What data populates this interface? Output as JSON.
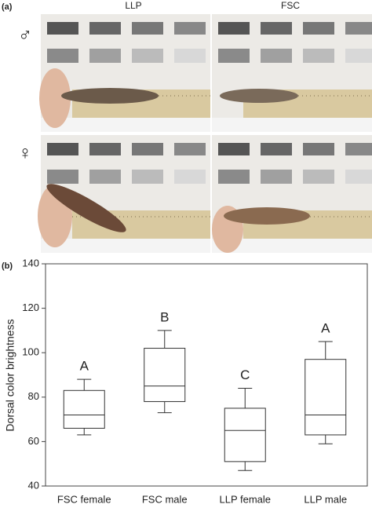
{
  "figure": {
    "panel_a_label": "(a)",
    "columns": [
      "LLP",
      "FSC"
    ],
    "rows": [
      "♂",
      "♀"
    ]
  },
  "chart_data": {
    "type": "box",
    "panel_label": "(b)",
    "y_label": "Dorsal color brightness",
    "categories": [
      "FSC female",
      "FSC male",
      "LLP female",
      "LLP male"
    ],
    "boxes": [
      {
        "min": 63,
        "q1": 66,
        "median": 72,
        "q3": 83,
        "max": 88
      },
      {
        "min": 73,
        "q1": 78,
        "median": 85,
        "q3": 102,
        "max": 110
      },
      {
        "min": 47,
        "q1": 51,
        "median": 65,
        "q3": 75,
        "max": 84
      },
      {
        "min": 59,
        "q1": 63,
        "median": 72,
        "q3": 97,
        "max": 105
      }
    ],
    "annotations": [
      "A",
      "B",
      "C",
      "A"
    ],
    "color": "#333333",
    "ylim": [
      40,
      140
    ],
    "yticks": [
      40,
      60,
      80,
      100,
      120,
      140
    ]
  }
}
